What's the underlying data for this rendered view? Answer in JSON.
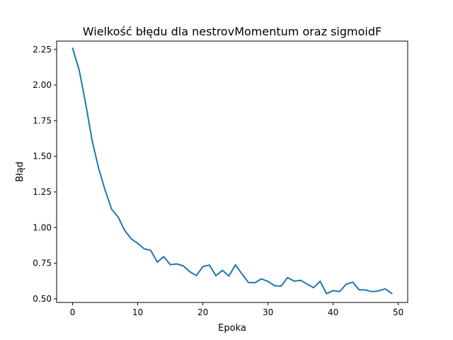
{
  "chart_data": {
    "type": "line",
    "title": "Wielkość błędu dla nestrovMomentum oraz sigmoidF",
    "xlabel": "Epoka",
    "ylabel": "Błąd",
    "xlim": [
      -2.45,
      51.45
    ],
    "ylim": [
      0.4745,
      2.3085
    ],
    "xticks": [
      0,
      10,
      20,
      30,
      40,
      50
    ],
    "xtick_labels": [
      "0",
      "10",
      "20",
      "30",
      "40",
      "50"
    ],
    "yticks": [
      0.5,
      0.75,
      1.0,
      1.25,
      1.5,
      1.75,
      2.0,
      2.25
    ],
    "ytick_labels": [
      "0.50",
      "0.75",
      "1.00",
      "1.25",
      "1.50",
      "1.75",
      "2.00",
      "2.25"
    ],
    "grid": false,
    "legend": "none",
    "series": [
      {
        "color": "#1f77b4",
        "x": [
          0,
          1,
          2,
          3,
          4,
          5,
          6,
          7,
          8,
          9,
          10,
          11,
          12,
          13,
          14,
          15,
          16,
          17,
          18,
          19,
          20,
          21,
          22,
          23,
          24,
          25,
          26,
          27,
          28,
          29,
          30,
          31,
          32,
          33,
          34,
          35,
          36,
          37,
          38,
          39,
          40,
          41,
          42,
          43,
          44,
          45,
          46,
          47,
          48,
          49
        ],
        "values": [
          2.258,
          2.108,
          1.872,
          1.61,
          1.415,
          1.262,
          1.128,
          1.074,
          0.98,
          0.921,
          0.889,
          0.851,
          0.84,
          0.758,
          0.796,
          0.74,
          0.745,
          0.731,
          0.69,
          0.663,
          0.726,
          0.737,
          0.662,
          0.7,
          0.66,
          0.738,
          0.675,
          0.615,
          0.613,
          0.64,
          0.622,
          0.592,
          0.589,
          0.649,
          0.624,
          0.63,
          0.604,
          0.578,
          0.623,
          0.536,
          0.558,
          0.551,
          0.602,
          0.617,
          0.563,
          0.562,
          0.55,
          0.556,
          0.57,
          0.538
        ]
      }
    ]
  }
}
